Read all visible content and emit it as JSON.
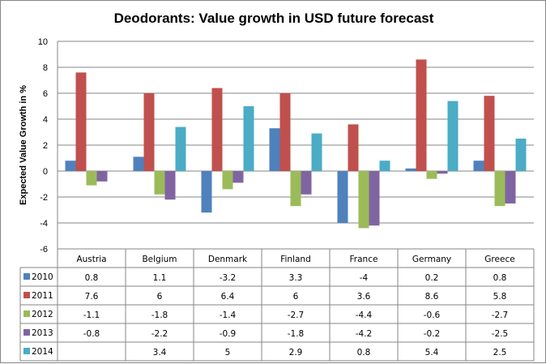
{
  "chart_data": {
    "type": "bar",
    "title": "Deodorants: Value growth in USD future forecast",
    "xlabel": "",
    "ylabel": "Expected Value Growth in %",
    "ylim": [
      -6,
      10
    ],
    "yticks": [
      "10",
      "8",
      "6",
      "4",
      "2",
      "0",
      "-2",
      "-4",
      "-6"
    ],
    "ytick_values": [
      10,
      8,
      6,
      4,
      2,
      0,
      -2,
      -4,
      -6
    ],
    "grid": true,
    "legend": "data-table-left",
    "categories": [
      "Austria",
      "Belgium",
      "Denmark",
      "Finland",
      "France",
      "Germany",
      "Greece"
    ],
    "series": [
      {
        "name": "2010",
        "color": "#4F81BD",
        "values": [
          0.8,
          1.1,
          -3.2,
          3.3,
          -4,
          0.2,
          0.8
        ]
      },
      {
        "name": "2011",
        "color": "#C0504D",
        "values": [
          7.6,
          6,
          6.4,
          6,
          3.6,
          8.6,
          5.8
        ]
      },
      {
        "name": "2012",
        "color": "#9BBB59",
        "values": [
          -1.1,
          -1.8,
          -1.4,
          -2.7,
          -4.4,
          -0.6,
          -2.7
        ]
      },
      {
        "name": "2013",
        "color": "#8064A2",
        "values": [
          -0.8,
          -2.2,
          -0.9,
          -1.8,
          -4.2,
          -0.2,
          -2.5
        ]
      },
      {
        "name": "2014",
        "color": "#4BACC6",
        "values": [
          null,
          3.4,
          5,
          2.9,
          0.8,
          5.4,
          2.5
        ]
      }
    ],
    "table_cells": [
      [
        "0.8",
        "1.1",
        "-3.2",
        "3.3",
        "-4",
        "0.2",
        "0.8"
      ],
      [
        "7.6",
        "6",
        "6.4",
        "6",
        "3.6",
        "8.6",
        "5.8"
      ],
      [
        "-1.1",
        "-1.8",
        "-1.4",
        "-2.7",
        "-4.4",
        "-0.6",
        "-2.7"
      ],
      [
        "-0.8",
        "-2.2",
        "-0.9",
        "-1.8",
        "-4.2",
        "-0.2",
        "-2.5"
      ],
      [
        "",
        "3.4",
        "5",
        "2.9",
        "0.8",
        "5.4",
        "2.5"
      ]
    ]
  },
  "colors": {
    "gridline": "#868686",
    "border": "#868686"
  }
}
